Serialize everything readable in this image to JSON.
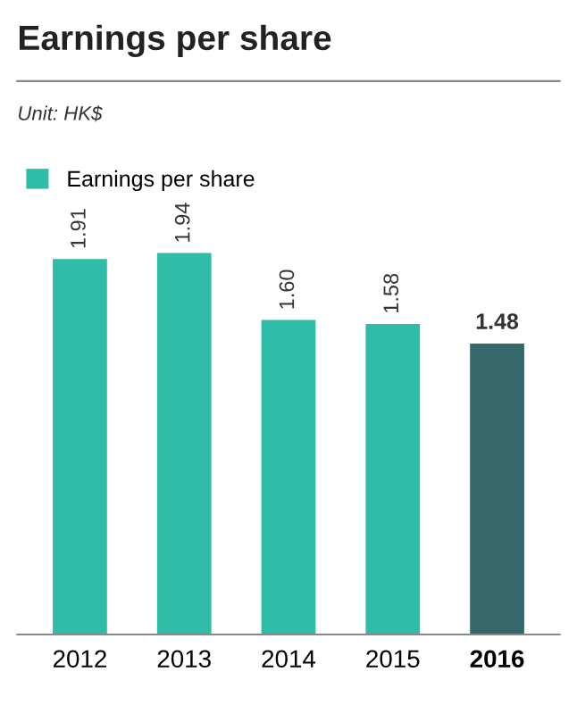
{
  "chart_data": {
    "type": "bar",
    "title": "Earnings per share",
    "subtitle": "Unit: HK$",
    "categories": [
      "2012",
      "2013",
      "2014",
      "2015",
      "2016"
    ],
    "series": [
      {
        "name": "Earnings per share",
        "color": "#2ebba7",
        "colors": [
          "#2ebba7",
          "#2ebba7",
          "#2ebba7",
          "#2ebba7",
          "#36686b"
        ],
        "values": [
          1.91,
          1.94,
          1.6,
          1.58,
          1.48
        ],
        "value_labels": [
          "1.91",
          "1.94",
          "1.60",
          "1.58",
          "1.48"
        ]
      }
    ],
    "legend": "top left",
    "grid": false
  }
}
